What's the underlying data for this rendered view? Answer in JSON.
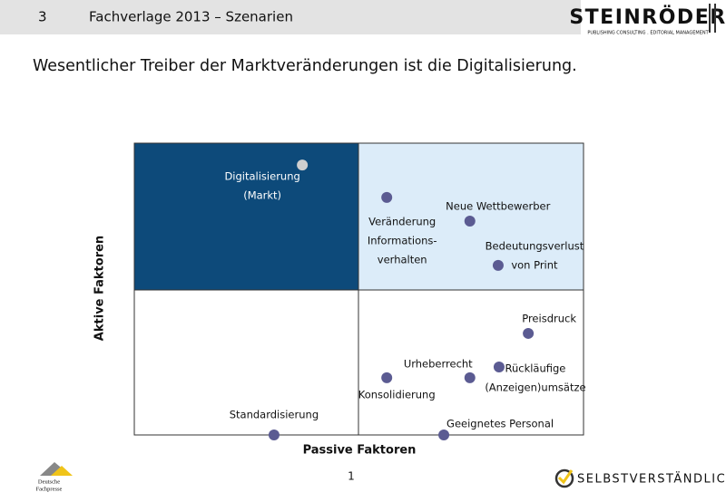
{
  "header": {
    "page": "3",
    "section": "Fachverlage 2013 – Szenarien",
    "logo": "STEINRÖDER",
    "logo_subtitle": "PUBLISHING CONSULTING . EDITORIAL MANAGEMENT"
  },
  "title": "Wesentlicher Treiber der Marktveränderungen ist die Digitalisierung.",
  "chart_data": {
    "type": "scatter",
    "x_label": "Passive Faktoren",
    "y_label": "Aktive Faktoren",
    "xlim": [
      0,
      10
    ],
    "ylim": [
      0,
      10
    ],
    "points": [
      {
        "label": [
          "Digitalisierung",
          "(Markt)"
        ],
        "x": 3.74,
        "y": 9.25,
        "color": "#cfcfcf"
      },
      {
        "label": [
          "Veränderung",
          "Informations-",
          "verhalten"
        ],
        "x": 5.62,
        "y": 8.14,
        "color": "#5b5b92"
      },
      {
        "label": [
          "Neue Wettbewerber"
        ],
        "x": 7.47,
        "y": 7.33,
        "color": "#5b5b92"
      },
      {
        "label": [
          "Bedeutungsverlust",
          "von Print"
        ],
        "x": 8.1,
        "y": 5.81,
        "color": "#5b5b92"
      },
      {
        "label": [
          "Preisdruck"
        ],
        "x": 8.77,
        "y": 3.48,
        "color": "#5b5b92"
      },
      {
        "label": [
          "Urheberrecht"
        ],
        "x": 7.47,
        "y": 1.96,
        "color": "#5b5b92"
      },
      {
        "label": [
          "Rückläufige",
          "(Anzeigen)umsätze"
        ],
        "x": 8.12,
        "y": 2.33,
        "color": "#5b5b92"
      },
      {
        "label": [
          "Konsolidierung"
        ],
        "x": 5.62,
        "y": 1.96,
        "color": "#5b5b92"
      },
      {
        "label": [
          "Standardisierung"
        ],
        "x": 3.11,
        "y": 0,
        "color": "#5b5b92"
      },
      {
        "label": [
          "Geeignetes Personal"
        ],
        "x": 6.89,
        "y": 0,
        "color": "#5b5b92"
      }
    ]
  },
  "footer": {
    "page_number": "1",
    "claim": "SELBSTVERSTÄNDLICH",
    "partner": [
      "Deutsche",
      "Fachpresse"
    ]
  }
}
